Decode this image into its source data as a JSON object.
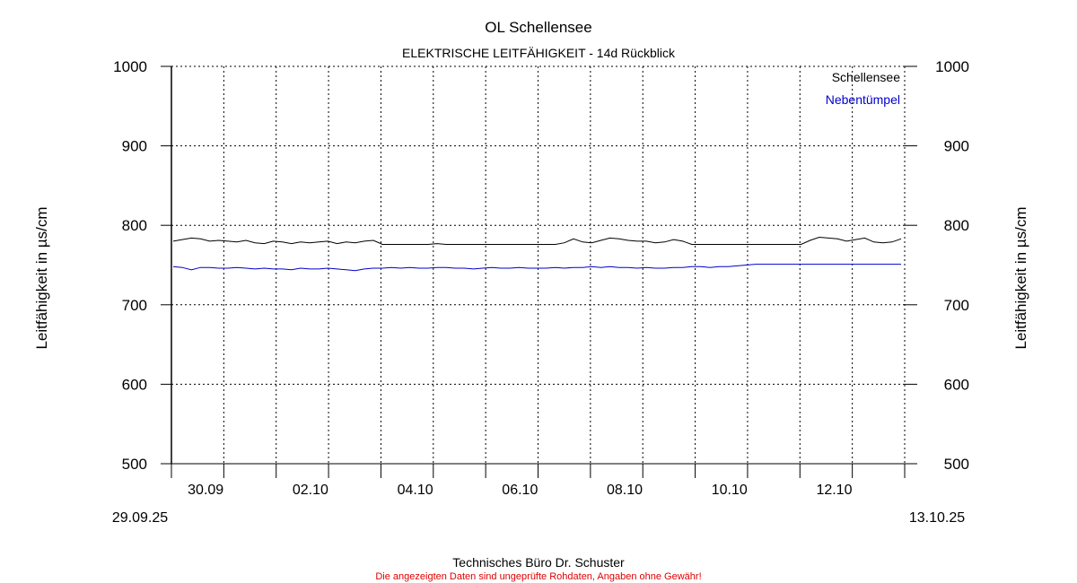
{
  "chart_data": {
    "type": "line",
    "title": "OL Schellensee",
    "subtitle": "ELEKTRISCHE LEITFÄHIGKEIT - 14d Rückblick",
    "ylabel_left": "Leitfähigkeit in µs/cm",
    "ylabel_right": "Leitfähigkeit in µs/cm",
    "ylim": [
      500,
      1000
    ],
    "y_ticks": [
      "500",
      "600",
      "700",
      "800",
      "900",
      "1000"
    ],
    "x_tick_labels": [
      "30.09",
      "02.10",
      "04.10",
      "06.10",
      "08.10",
      "10.10",
      "12.10"
    ],
    "x_start_label": "29.09.25",
    "x_end_label": "13.10.25",
    "grid": true,
    "legend_position": "top-right",
    "series": [
      {
        "name": "Schellensee",
        "color": "#000000",
        "values": [
          780,
          782,
          784,
          783,
          780,
          781,
          780,
          779,
          781,
          778,
          777,
          780,
          779,
          777,
          779,
          778,
          779,
          780,
          777,
          779,
          778,
          780,
          781,
          776,
          776,
          776,
          776,
          776,
          776,
          777,
          776,
          776,
          776,
          776,
          776,
          776,
          776,
          776,
          776,
          776,
          776,
          776,
          776,
          778,
          783,
          779,
          778,
          781,
          784,
          783,
          781,
          780,
          780,
          778,
          779,
          782,
          780,
          776,
          776,
          776,
          776,
          776,
          776,
          776,
          776,
          776,
          776,
          776,
          776,
          776,
          781,
          785,
          784,
          783,
          780,
          782,
          784,
          779,
          778,
          779,
          783
        ]
      },
      {
        "name": "Nebentümpel",
        "color": "#0000cc",
        "values": [
          748,
          747,
          744,
          747,
          747,
          746,
          746,
          747,
          746,
          745,
          746,
          745,
          745,
          744,
          746,
          745,
          745,
          746,
          745,
          744,
          743,
          745,
          746,
          746,
          747,
          746,
          747,
          746,
          746,
          747,
          747,
          746,
          746,
          745,
          746,
          747,
          746,
          746,
          747,
          746,
          746,
          746,
          747,
          746,
          747,
          747,
          748,
          747,
          748,
          747,
          747,
          746,
          747,
          746,
          746,
          747,
          747,
          748,
          748,
          747,
          748,
          748,
          749,
          750,
          751,
          751,
          751,
          751,
          751,
          751,
          751,
          751,
          751,
          751,
          751,
          751,
          751,
          751,
          751,
          751,
          751
        ]
      }
    ]
  },
  "footer": {
    "company": "Technisches Büro Dr. Schuster",
    "disclaimer": "Die angezeigten Daten sind ungeprüfte Rohdaten, Angaben ohne Gewähr!",
    "disclaimer_color": "#e00000"
  }
}
